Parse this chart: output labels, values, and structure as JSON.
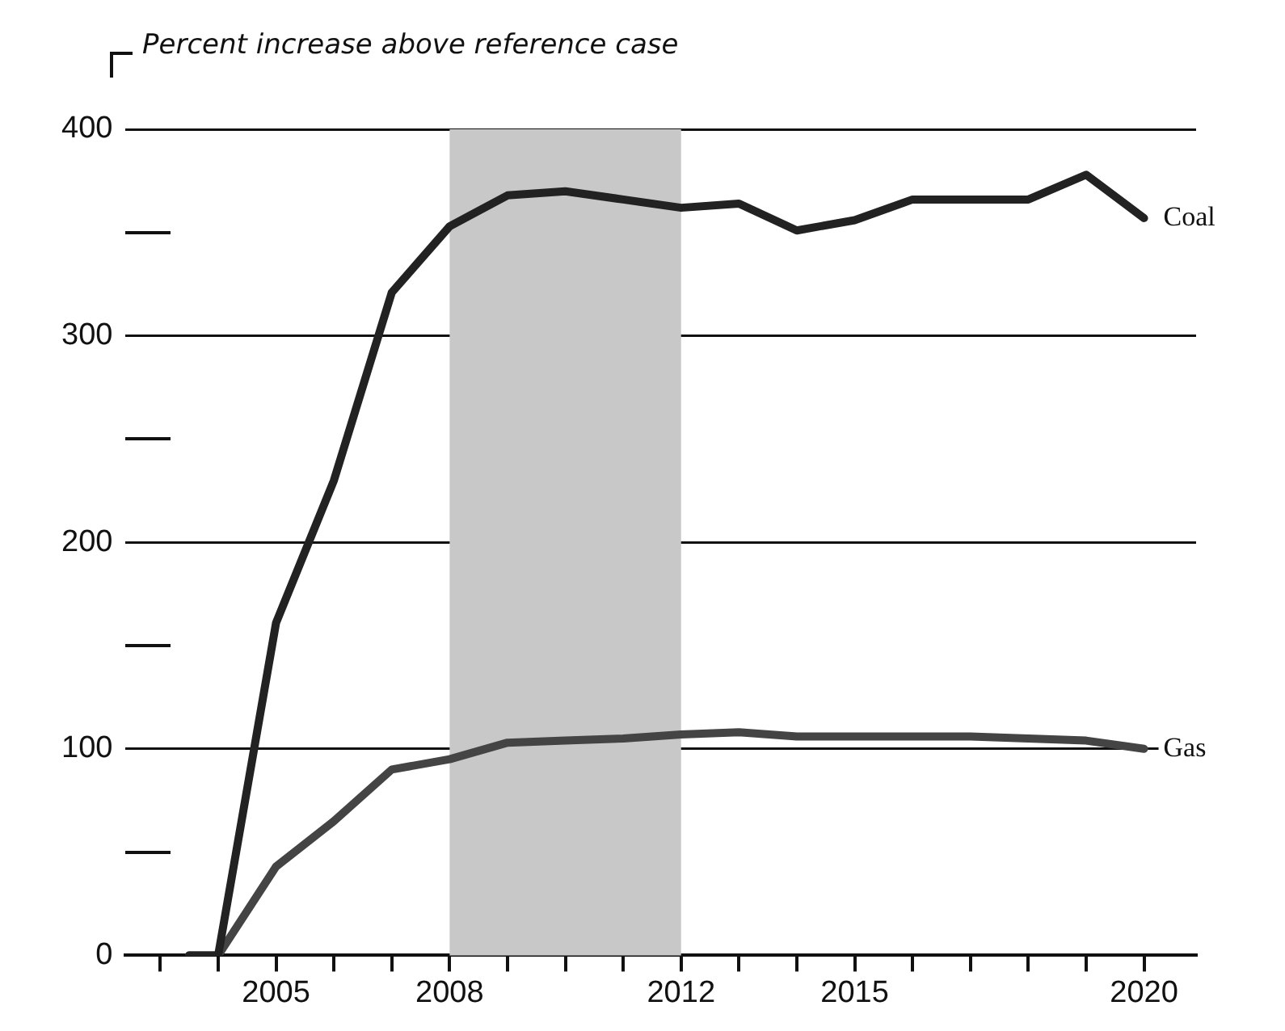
{
  "chart_data": {
    "type": "line",
    "ylabel": "Percent increase above reference case",
    "x": [
      2003.5,
      2004,
      2005,
      2006,
      2007,
      2008,
      2009,
      2010,
      2011,
      2012,
      2013,
      2014,
      2015,
      2016,
      2017,
      2018,
      2019,
      2020
    ],
    "series": [
      {
        "name": "Coal",
        "color": "#222222",
        "values": [
          0,
          0,
          161,
          230,
          321,
          353,
          368,
          370,
          366,
          362,
          364,
          351,
          356,
          366,
          366,
          366,
          378,
          357
        ]
      },
      {
        "name": "Gas",
        "color": "#444444",
        "values": [
          0,
          0,
          43,
          65,
          90,
          95,
          103,
          104,
          105,
          107,
          108,
          106,
          106,
          106,
          106,
          105,
          104,
          100
        ]
      }
    ],
    "xlim": [
      2002.4,
      2020.9
    ],
    "xticks": [
      {
        "value": 2003,
        "label": null
      },
      {
        "value": 2004,
        "label": null
      },
      2005,
      {
        "value": 2006,
        "label": null
      },
      {
        "value": 2007,
        "label": null
      },
      2008,
      {
        "value": 2009,
        "label": null
      },
      {
        "value": 2010,
        "label": null
      },
      {
        "value": 2011,
        "label": null
      },
      2012,
      {
        "value": 2013,
        "label": null
      },
      {
        "value": 2014,
        "label": null
      },
      2015,
      {
        "value": 2016,
        "label": null
      },
      {
        "value": 2017,
        "label": null
      },
      {
        "value": 2018,
        "label": null
      },
      {
        "value": 2019,
        "label": null
      },
      2020
    ],
    "ylim": [
      0,
      400
    ],
    "yticks": [
      0,
      {
        "value": 50,
        "label": null
      },
      100,
      {
        "value": 150,
        "label": null
      },
      200,
      {
        "value": 250,
        "label": null
      },
      300,
      {
        "value": 350,
        "label": null
      },
      400
    ],
    "bands": [
      {
        "axis": "x",
        "from": 2008,
        "to": 2012,
        "color": "#c8c8c8"
      }
    ],
    "grid": "y",
    "legend": false,
    "marker": "none",
    "line_style": "solid"
  }
}
